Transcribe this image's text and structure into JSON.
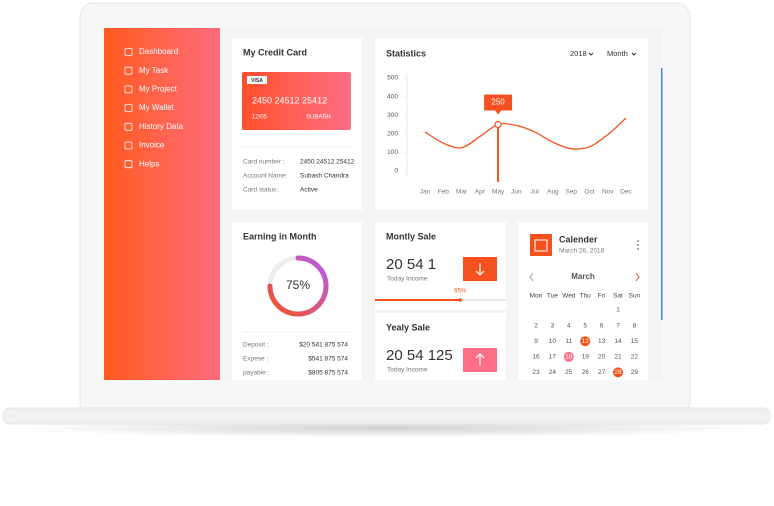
{
  "sidebar": {
    "menu": [
      "Dashboard",
      "My Task",
      "My Project",
      "My Wallet",
      "History Data",
      "Invoice",
      "Helps"
    ]
  },
  "credit_card": {
    "title": "My Credit Card",
    "brand": "VISA",
    "number": "2450 24512 25412",
    "expiry": "12/05",
    "holder": "SUBASH",
    "details": [
      {
        "label": "Card number :",
        "value": "2450 24512 25412"
      },
      {
        "label": "Account Name:",
        "value": "Subash Chandra"
      },
      {
        "label": "Card status:",
        "value": "Active"
      }
    ]
  },
  "chart_data": {
    "type": "line",
    "title": "Statistics",
    "year": "2018",
    "period": "Month",
    "categories": [
      "Jan",
      "Feb",
      "Mar",
      "Apr",
      "May",
      "Jun",
      "Jul",
      "Aug",
      "Sep",
      "Oct",
      "Nov",
      "Dec"
    ],
    "values": [
      210,
      150,
      125,
      185,
      250,
      245,
      210,
      155,
      120,
      130,
      195,
      285
    ],
    "color": "#f4511e",
    "ylim": [
      0,
      500
    ],
    "yticks": [
      0,
      100,
      200,
      300,
      400,
      500
    ]
  },
  "earning": {
    "title": "Earning in Month",
    "value": 75,
    "value_label": "75%",
    "rows": [
      {
        "label": "Deposit :",
        "value": "$20 541 875 574"
      },
      {
        "label": "Expese :",
        "value": "$541 875 574"
      },
      {
        "label": "payable :",
        "value": "$805 875 574"
      }
    ]
  },
  "monthly_sale": {
    "title": "Montly Sale",
    "amount": "20 54 1",
    "caption": "Today Income",
    "progress": 65,
    "progress_label": "65%"
  },
  "yearly_sale": {
    "title": "Yealy Sale",
    "amount": "20 54 125",
    "caption": "Today Income"
  },
  "calendar": {
    "title": "Calender",
    "date": "March 26, 2018",
    "month": "March",
    "weekdays": [
      "Mon",
      "Tue",
      "Wed",
      "Thu",
      "Fri",
      "Sat",
      "Sun"
    ],
    "weeks": [
      [
        null,
        null,
        null,
        null,
        null,
        1,
        null
      ],
      [
        2,
        3,
        4,
        5,
        6,
        7,
        8
      ],
      [
        9,
        10,
        11,
        12,
        13,
        14,
        15
      ],
      [
        16,
        17,
        18,
        19,
        20,
        21,
        22
      ],
      [
        23,
        24,
        25,
        26,
        27,
        28,
        29
      ]
    ]
  }
}
